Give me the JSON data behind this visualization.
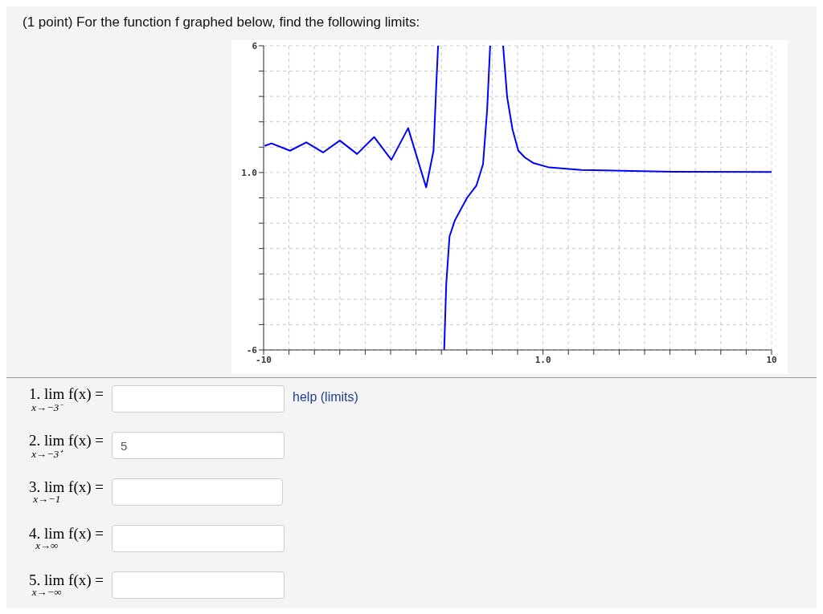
{
  "chart_data": {
    "type": "line",
    "title": "(1 point) For the function f graphed below, find the following limits:",
    "x": [
      -9.96,
      -9.69,
      -8.96,
      -8.32,
      -7.66,
      -7.0,
      -6.32,
      -5.65,
      -4.97,
      -4.31,
      -3.6,
      -3.31,
      -3.2,
      -3.13,
      -3.0,
      -2.89,
      -2.81,
      -2.68,
      -2.47,
      -1.99,
      -1.62,
      -1.36,
      -1.2,
      -1.08,
      -0.8,
      -0.57,
      -0.41,
      -0.2,
      0.03,
      0.29,
      0.61,
      1.24,
      2.51,
      6.1,
      10
    ],
    "series": [
      {
        "color": "#0000ff",
        "values": [
          2.05,
          2.15,
          1.86,
          2.19,
          1.79,
          2.26,
          1.73,
          2.4,
          1.5,
          2.75,
          0.41,
          1.86,
          4.49,
          6,
          null,
          -6,
          -3.42,
          -1.52,
          -0.89,
          0,
          0.49,
          1.33,
          3.45,
          6,
          null,
          6,
          3.97,
          2.7,
          1.86,
          1.59,
          1.38,
          1.2,
          1.1,
          1.03,
          1.02
        ]
      }
    ],
    "xlim": [
      -10,
      10
    ],
    "ylim": [
      -6,
      6
    ],
    "xticks": [
      -10,
      {
        "value": -9,
        "label": null
      },
      {
        "value": -8,
        "label": null
      },
      {
        "value": -7,
        "label": null
      },
      {
        "value": -6,
        "label": null
      },
      {
        "value": -5,
        "label": null
      },
      {
        "value": -4,
        "label": null
      },
      {
        "value": -3,
        "label": null
      },
      {
        "value": -2,
        "label": null
      },
      {
        "value": -1,
        "label": null
      },
      {
        "value": 0,
        "label": null
      },
      {
        "value": 1,
        "label": "1.0"
      },
      {
        "value": 2,
        "label": null
      },
      {
        "value": 3,
        "label": null
      },
      {
        "value": 4,
        "label": null
      },
      {
        "value": 5,
        "label": null
      },
      {
        "value": 6,
        "label": null
      },
      {
        "value": 7,
        "label": null
      },
      {
        "value": 8,
        "label": null
      },
      {
        "value": 9,
        "label": null
      },
      10
    ],
    "yticks": [
      -6,
      {
        "value": -5,
        "label": null
      },
      {
        "value": -4,
        "label": null
      },
      {
        "value": -3,
        "label": null
      },
      {
        "value": -2,
        "label": null
      },
      {
        "value": -1,
        "label": null
      },
      {
        "value": 0,
        "label": null
      },
      {
        "value": 1,
        "label": "1.0"
      },
      {
        "value": 2,
        "label": null
      },
      {
        "value": 3,
        "label": null
      },
      {
        "value": 4,
        "label": null
      },
      {
        "value": 5,
        "label": null
      },
      6
    ],
    "grid": true,
    "line_style": "solid",
    "annotations": [
      "1. lim$_{x→−3⁻}$ f(x) =",
      "2. lim$_{x→−3⁺}$ f(x) =",
      "3. lim$_{x→−1}$ f(x) =",
      "4. lim$_{x→∞}$ f(x) =",
      "5. lim$_{x→−∞}$ f(x) =",
      "help (limits)",
      "5"
    ]
  }
}
